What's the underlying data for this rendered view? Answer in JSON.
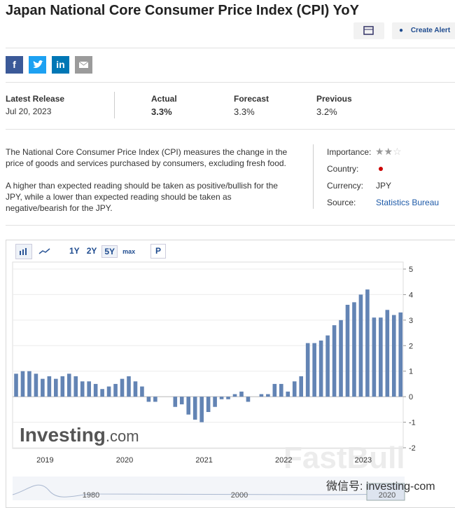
{
  "header": {
    "title": "Japan National Core Consumer Price Index (CPI) YoY",
    "create_alert": "Create Alert"
  },
  "social": {
    "facebook": "f",
    "linkedin": "in"
  },
  "release": {
    "latest_release_label": "Latest Release",
    "date": "Jul 20, 2023",
    "actual_label": "Actual",
    "actual": "3.3%",
    "forecast_label": "Forecast",
    "forecast": "3.3%",
    "previous_label": "Previous",
    "previous": "3.2%"
  },
  "description": {
    "paragraphs": [
      "The National Core Consumer Price Index (CPI) measures the change in the price of goods and services purchased by consumers, excluding fresh food.",
      "A higher than expected reading should be taken as positive/bullish for the JPY, while a lower than expected reading should be taken as negative/bearish for the JPY."
    ]
  },
  "details": {
    "importance_label": "Importance:",
    "country_label": "Country:",
    "currency_label": "Currency:",
    "currency": "JPY",
    "source_label": "Source:",
    "source": "Statistics Bureau"
  },
  "chart_toolbar": {
    "ranges": [
      "1Y",
      "2Y",
      "5Y",
      "max"
    ],
    "p": "P"
  },
  "chart_data": {
    "type": "bar",
    "color": "#6384b4",
    "grid": true,
    "categories": [
      null,
      null,
      null,
      null,
      null,
      "2019",
      null,
      null,
      null,
      null,
      null,
      null,
      null,
      null,
      null,
      null,
      null,
      "2020",
      null,
      null,
      null,
      null,
      null,
      null,
      null,
      null,
      null,
      null,
      null,
      "2021",
      null,
      null,
      null,
      null,
      null,
      null,
      null,
      null,
      null,
      null,
      null,
      "2022",
      null,
      null,
      null,
      null,
      null,
      null,
      null,
      null,
      null,
      null,
      null,
      "2023",
      null,
      null,
      null,
      null,
      null
    ],
    "values": [
      0.9,
      1.0,
      1.0,
      0.9,
      0.7,
      0.8,
      0.7,
      0.8,
      0.9,
      0.8,
      0.6,
      0.6,
      0.5,
      0.3,
      0.4,
      0.5,
      0.7,
      0.8,
      0.6,
      0.4,
      -0.2,
      -0.2,
      0.0,
      0.0,
      -0.4,
      -0.3,
      -0.7,
      -0.9,
      -1.0,
      -0.6,
      -0.4,
      -0.1,
      -0.1,
      0.1,
      0.2,
      -0.2,
      0.0,
      0.1,
      0.1,
      0.5,
      0.5,
      0.2,
      0.6,
      0.8,
      2.1,
      2.1,
      2.2,
      2.4,
      2.8,
      3.0,
      3.6,
      3.7,
      4.0,
      4.2,
      3.1,
      3.1,
      3.4,
      3.2,
      3.3
    ],
    "ylim": [
      -2,
      5
    ],
    "yticks": [
      -2,
      -1,
      0,
      1,
      2,
      3,
      4,
      5
    ]
  },
  "navigator": {
    "labels": [
      "1980",
      "2000",
      "2020"
    ]
  },
  "watermarks": {
    "logo": "Investing",
    "logo_suffix": ".com",
    "fastbull": "FastBull",
    "wechat": "微信号: investing-com"
  }
}
